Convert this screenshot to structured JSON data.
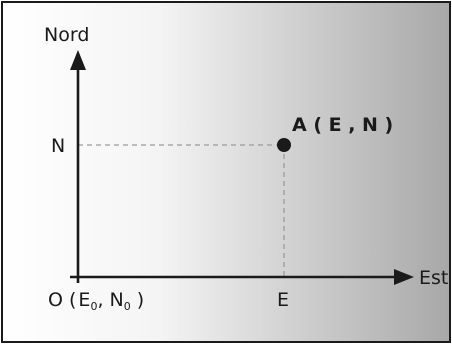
{
  "diagram": {
    "y_axis_label": "Nord",
    "x_axis_label": "Est",
    "point_label": "A ( E , N )",
    "y_tick_label": "N",
    "x_tick_label": "E",
    "origin": {
      "prefix": "O (",
      "e": "E",
      "e_sub": "0",
      "comma": ",",
      "n": "N",
      "n_sub": "0",
      "suffix": " )"
    },
    "colors": {
      "background_light": "#ffffff",
      "background_dark": "#a8a8a8",
      "frame": "#1a1a1a",
      "axis": "#1a1a1a",
      "guide": "#9a9a9a",
      "point": "#1a1a1a"
    }
  }
}
